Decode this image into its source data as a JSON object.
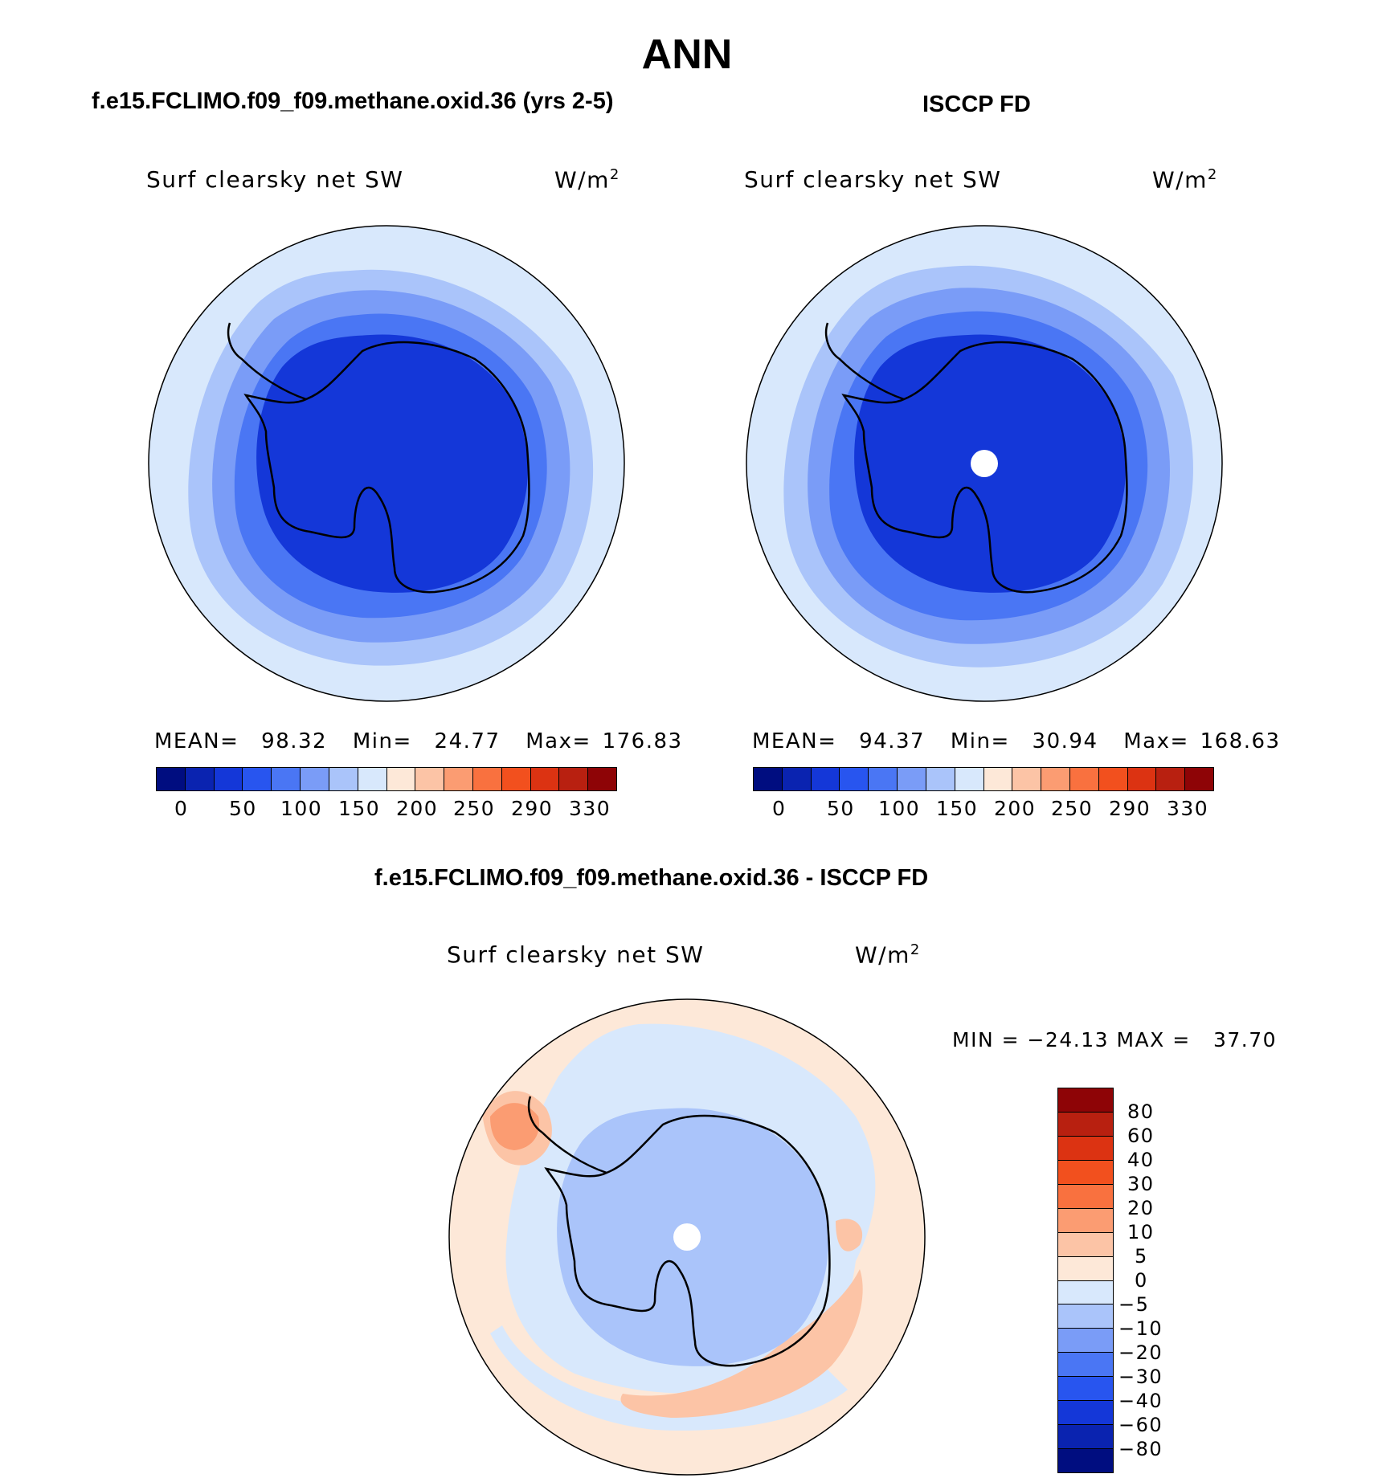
{
  "figure": {
    "title": "ANN",
    "panel1_title": "f.e15.FCLIMO.f09_f09.methane.oxid.36 (yrs 2-5)",
    "panel2_title": "ISCCP FD",
    "diff_title": "f.e15.FCLIMO.f09_f09.methane.oxid.36 - ISCCP FD"
  },
  "panels": [
    {
      "variable": "Surf clearsky net SW",
      "units_base": "W/m",
      "units_exp": "2",
      "mean_label": "MEAN=",
      "mean": "98.32",
      "min_label": "Min=",
      "min": "24.77",
      "max_label": "Max=",
      "max": "176.83"
    },
    {
      "variable": "Surf clearsky net SW",
      "units_base": "W/m",
      "units_exp": "2",
      "mean_label": "MEAN=",
      "mean": "94.37",
      "min_label": "Min=",
      "min": "30.94",
      "max_label": "Max=",
      "max": "168.63"
    }
  ],
  "diff": {
    "variable": "Surf clearsky net SW",
    "units_base": "W/m",
    "units_exp": "2",
    "minmax": "MIN = −24.13 MAX =   37.70"
  },
  "colorbar_abs": {
    "colors": [
      "#000d80",
      "#0a23b0",
      "#1437d8",
      "#2855ef",
      "#4a76f4",
      "#7a9cf7",
      "#aac4fa",
      "#d8e8fc",
      "#fde8d8",
      "#fcc4a6",
      "#fb9c72",
      "#f9713f",
      "#f2501e",
      "#dc3312",
      "#b82010",
      "#8e0406"
    ],
    "labels": [
      "0",
      "50",
      "100",
      "150",
      "200",
      "250",
      "290",
      "330"
    ]
  },
  "colorbar_diff": {
    "colors_top_to_bottom": [
      "#8e0406",
      "#b82010",
      "#dc3312",
      "#f2501e",
      "#f9713f",
      "#fb9c72",
      "#fcc4a6",
      "#fde8d8",
      "#d8e8fc",
      "#aac4fa",
      "#7a9cf7",
      "#4a76f4",
      "#2855ef",
      "#1437d8",
      "#0a23b0",
      "#000d80"
    ],
    "labels_top_to_bottom": [
      "80",
      "60",
      "40",
      "30",
      "20",
      "10",
      "5",
      "0",
      "−5",
      "−10",
      "−20",
      "−30",
      "−40",
      "−60",
      "−80"
    ]
  },
  "map_colors": {
    "ocean_outer": "#d8e8fc",
    "ring2": "#aac4fa",
    "ring3": "#7a9cf7",
    "ring4": "#4a76f4",
    "continent": "#1437d8",
    "diff_positive": "#fde8d8",
    "diff_pos2": "#fcc4a6",
    "diff_pos3": "#fb9c72",
    "diff_neg": "#d8e8fc",
    "diff_neg2": "#aac4fa"
  }
}
